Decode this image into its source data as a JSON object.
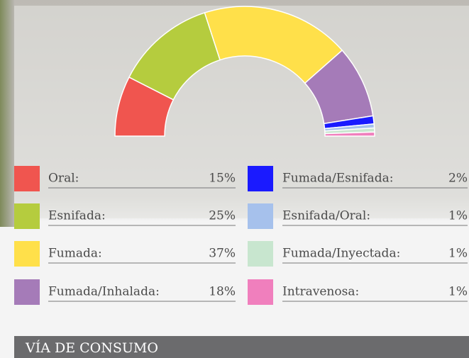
{
  "chart_data": {
    "type": "pie",
    "title": "VÍA DE CONSUMO",
    "categories": [
      "Oral:",
      "Esnifada:",
      "Fumada:",
      "Fumada/Inhalada:",
      "Fumada/Esnifada:",
      "Esnifada/Oral:",
      "Fumada/Inyectada:",
      "Intravenosa:"
    ],
    "values": [
      15,
      25,
      37,
      18,
      2,
      1,
      1,
      1
    ],
    "value_labels": [
      "15%",
      "25%",
      "37%",
      "18%",
      "2%",
      "1%",
      "1%",
      "1%"
    ],
    "colors": [
      "#f0554f",
      "#b5cc3e",
      "#ffe04a",
      "#a57bb8",
      "#1a1aff",
      "#a6c1ec",
      "#c8e6cf",
      "#f07fbd"
    ]
  }
}
